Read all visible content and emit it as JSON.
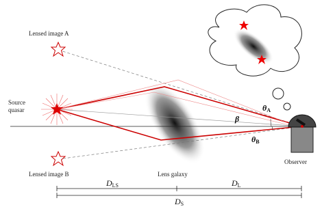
{
  "labels": {
    "image_a": "Lensed image A",
    "image_b": "Lensed image B",
    "source": [
      "Source",
      "quasar"
    ],
    "lens": "Lens galaxy",
    "observer": "Observer"
  },
  "angles": {
    "beta": "β",
    "theta_a": {
      "symbol": "θ",
      "subscript": "A"
    },
    "theta_b": {
      "symbol": "θ",
      "subscript": "B"
    }
  },
  "distances": {
    "d_ls": {
      "symbol": "D",
      "subscript": "LS"
    },
    "d_l": {
      "symbol": "D",
      "subscript": "L"
    },
    "d_s": {
      "symbol": "D",
      "subscript": "S"
    }
  }
}
